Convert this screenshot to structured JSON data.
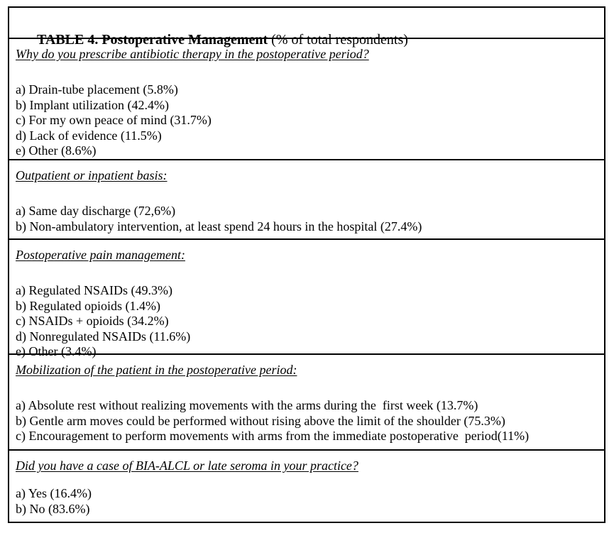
{
  "table": {
    "title": {
      "bold": "TABLE 4. Postoperative Management",
      "suffix": " (% of total respondents)"
    },
    "sections": [
      {
        "heading": "Why do you prescribe antibiotic therapy in the postoperative period?",
        "options": [
          "a) Drain-tube placement (5.8%)",
          "b) Implant utilization (42.4%)",
          "c) For my own peace of mind (31.7%)",
          "d) Lack of evidence (11.5%)",
          "e) Other (8.6%)"
        ]
      },
      {
        "heading": "Outpatient or inpatient basis:",
        "options": [
          "a) Same day discharge (72,6%)",
          "b) Non-ambulatory intervention, at least spend 24 hours in the hospital (27.4%)"
        ]
      },
      {
        "heading": "Postoperative pain management:",
        "options": [
          "a) Regulated NSAIDs (49.3%)",
          "b) Regulated opioids (1.4%)",
          "c) NSAIDs + opioids (34.2%)",
          "d) Nonregulated NSAIDs (11.6%)",
          "e) Other (3.4%)"
        ]
      },
      {
        "heading": "Mobilization of the patient in the postoperative period:",
        "options": [
          "a) Absolute rest without realizing movements with the arms during the  first week (13.7%)",
          "b) Gentle arm moves could be performed without rising above the limit of the shoulder (75.3%)",
          "c) Encouragement to perform movements with arms from the immediate postoperative  period(11%)"
        ]
      },
      {
        "heading": "Did you have a case of BIA-ALCL or late seroma in your practice?",
        "options": [
          "a) Yes (16.4%)",
          "b) No (83.6%)"
        ]
      }
    ]
  }
}
